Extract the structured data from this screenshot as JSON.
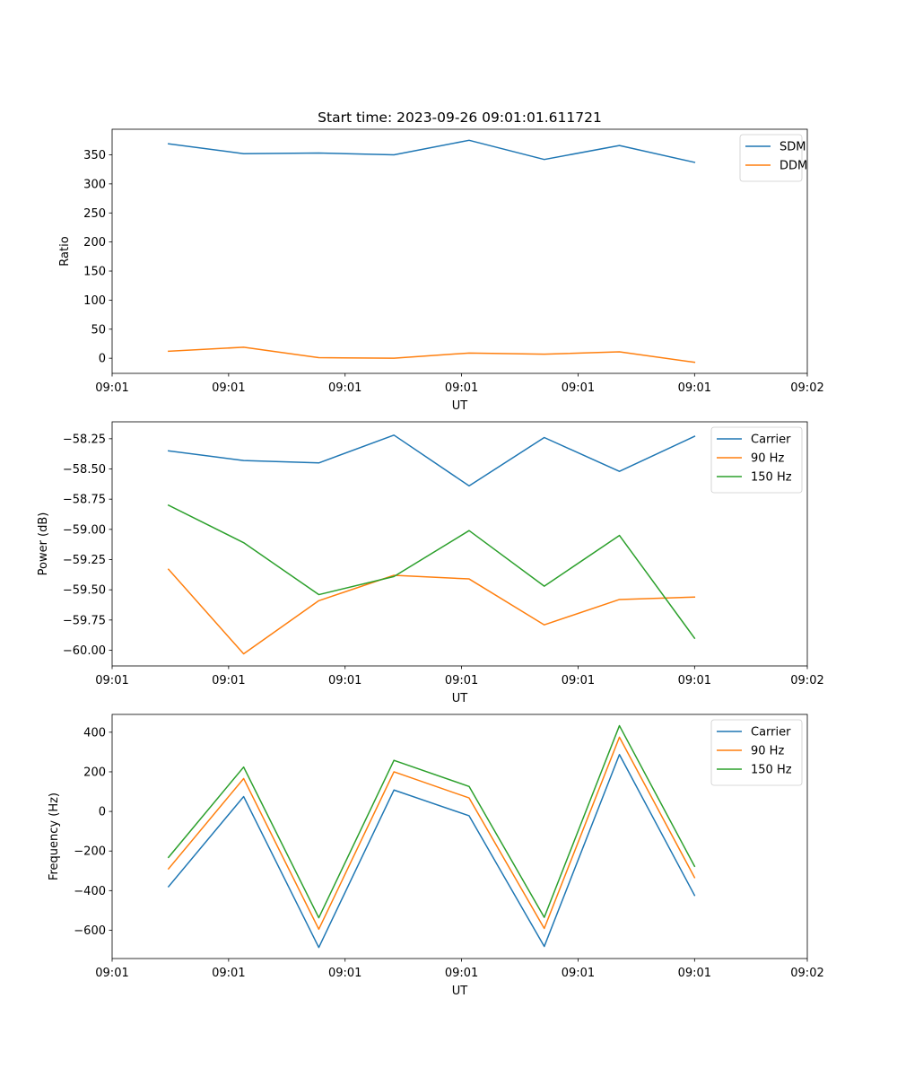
{
  "chart_data": [
    {
      "type": "line",
      "title": "Start time: 2023-09-26 09:01:01.611721",
      "xlabel": "UT",
      "ylabel": "Ratio",
      "x": [
        0,
        1,
        2,
        3,
        4,
        5,
        6,
        7
      ],
      "xlim": [
        -0.75,
        8.5
      ],
      "xticks": [
        -0.75,
        0.8,
        2.35,
        3.9,
        5.45,
        7.0,
        8.5
      ],
      "xticklabels": [
        "09:01",
        "09:01",
        "09:01",
        "09:01",
        "09:01",
        "09:01",
        "09:02"
      ],
      "ylim": [
        -26,
        394
      ],
      "yticks": [
        0,
        50,
        100,
        150,
        200,
        250,
        300,
        350
      ],
      "yticklabels": [
        "0",
        "50",
        "100",
        "150",
        "200",
        "250",
        "300",
        "350"
      ],
      "legend_loc": "upper right",
      "series": [
        {
          "name": "SDM",
          "color": "#1f77b4",
          "values": [
            369,
            352,
            353,
            350,
            375,
            342,
            366,
            337
          ]
        },
        {
          "name": "DDM",
          "color": "#ff7f0e",
          "values": [
            12,
            19,
            1,
            0,
            9,
            7,
            11,
            -7
          ]
        }
      ]
    },
    {
      "type": "line",
      "xlabel": "UT",
      "ylabel": "Power (dB)",
      "x": [
        0,
        1,
        2,
        3,
        4,
        5,
        6,
        7
      ],
      "xlim": [
        -0.75,
        8.5
      ],
      "xticks": [
        -0.75,
        0.8,
        2.35,
        3.9,
        5.45,
        7.0,
        8.5
      ],
      "xticklabels": [
        "09:01",
        "09:01",
        "09:01",
        "09:01",
        "09:01",
        "09:01",
        "09:02"
      ],
      "ylim": [
        -60.13,
        -58.11
      ],
      "yticks": [
        -58.25,
        -58.5,
        -58.75,
        -59.0,
        -59.25,
        -59.5,
        -59.75,
        -60.0
      ],
      "yticklabels": [
        "−58.25",
        "−58.50",
        "−58.75",
        "−59.00",
        "−59.25",
        "−59.50",
        "−59.75",
        "−60.00"
      ],
      "legend_loc": "upper right",
      "series": [
        {
          "name": "Carrier",
          "color": "#1f77b4",
          "values": [
            -58.35,
            -58.43,
            -58.45,
            -58.22,
            -58.64,
            -58.24,
            -58.52,
            -58.23
          ]
        },
        {
          "name": "90 Hz",
          "color": "#ff7f0e",
          "values": [
            -59.33,
            -60.03,
            -59.59,
            -59.38,
            -59.41,
            -59.79,
            -59.58,
            -59.56
          ]
        },
        {
          "name": "150 Hz",
          "color": "#2ca02c",
          "values": [
            -58.8,
            -59.11,
            -59.54,
            -59.39,
            -59.01,
            -59.47,
            -59.05,
            -59.9
          ]
        }
      ]
    },
    {
      "type": "line",
      "xlabel": "UT",
      "ylabel": "Frequency (Hz)",
      "x": [
        0,
        1,
        2,
        3,
        4,
        5,
        6,
        7
      ],
      "xlim": [
        -0.75,
        8.5
      ],
      "xticks": [
        -0.75,
        0.8,
        2.35,
        3.9,
        5.45,
        7.0,
        8.5
      ],
      "xticklabels": [
        "09:01",
        "09:01",
        "09:01",
        "09:01",
        "09:01",
        "09:01",
        "09:02"
      ],
      "ylim": [
        -743,
        490
      ],
      "yticks": [
        400,
        200,
        0,
        -200,
        -400,
        -600
      ],
      "yticklabels": [
        "400",
        "200",
        "0",
        "−200",
        "−400",
        "−600"
      ],
      "legend_loc": "upper right",
      "series": [
        {
          "name": "Carrier",
          "color": "#1f77b4",
          "values": [
            -380,
            75,
            -687,
            108,
            -22,
            -682,
            287,
            -424
          ]
        },
        {
          "name": "90 Hz",
          "color": "#ff7f0e",
          "values": [
            -290,
            166,
            -595,
            200,
            68,
            -591,
            375,
            -334
          ]
        },
        {
          "name": "150 Hz",
          "color": "#2ca02c",
          "values": [
            -232,
            224,
            -537,
            258,
            126,
            -535,
            433,
            -277
          ]
        }
      ]
    }
  ]
}
